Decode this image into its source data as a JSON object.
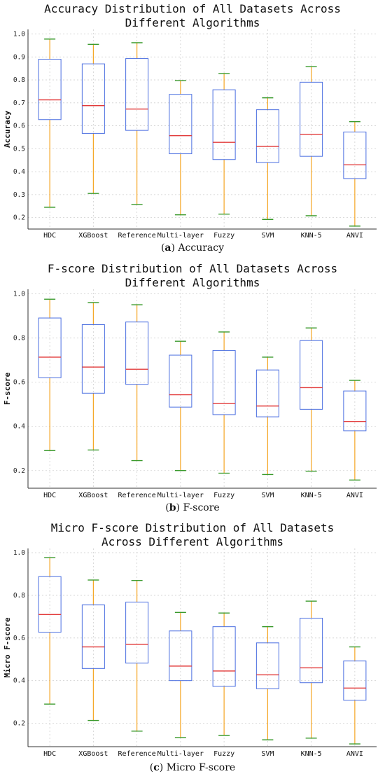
{
  "chart_data": [
    {
      "type": "box",
      "title_lines": [
        "Accuracy Distribution of All Datasets Across",
        "Different Algorithms"
      ],
      "xlabel": "",
      "ylabel": "Accuracy",
      "ylim": [
        0.15,
        1.02
      ],
      "yticks": [
        0.2,
        0.3,
        0.4,
        0.5,
        0.6,
        0.7,
        0.8,
        0.9,
        1.0
      ],
      "grid": true,
      "caption": {
        "label": "(a)",
        "text": " Accuracy"
      },
      "categories": [
        "HDC",
        "XGBoost",
        "Reference",
        "Multi-layer",
        "Fuzzy",
        "SVM",
        "KNN-5",
        "ANVI"
      ],
      "boxes": [
        {
          "min": 0.245,
          "q1": 0.627,
          "median": 0.713,
          "q3": 0.89,
          "max": 0.978
        },
        {
          "min": 0.305,
          "q1": 0.567,
          "median": 0.688,
          "q3": 0.87,
          "max": 0.955
        },
        {
          "min": 0.257,
          "q1": 0.58,
          "median": 0.673,
          "q3": 0.893,
          "max": 0.962
        },
        {
          "min": 0.212,
          "q1": 0.478,
          "median": 0.557,
          "q3": 0.737,
          "max": 0.797
        },
        {
          "min": 0.215,
          "q1": 0.453,
          "median": 0.528,
          "q3": 0.757,
          "max": 0.828
        },
        {
          "min": 0.192,
          "q1": 0.44,
          "median": 0.51,
          "q3": 0.67,
          "max": 0.722
        },
        {
          "min": 0.208,
          "q1": 0.467,
          "median": 0.563,
          "q3": 0.79,
          "max": 0.858
        },
        {
          "min": 0.163,
          "q1": 0.37,
          "median": 0.43,
          "q3": 0.573,
          "max": 0.618
        }
      ]
    },
    {
      "type": "box",
      "title_lines": [
        "F-score Distribution of All Datasets Across",
        "Different Algorithms"
      ],
      "xlabel": "",
      "ylabel": "F-score",
      "ylim": [
        0.12,
        1.02
      ],
      "yticks": [
        0.2,
        0.4,
        0.6,
        0.8,
        1.0
      ],
      "grid": true,
      "caption": {
        "label": "(b)",
        "text": " F-score"
      },
      "categories": [
        "HDC",
        "XGBoost",
        "Reference",
        "Multi-layer",
        "Fuzzy",
        "SVM",
        "KNN-5",
        "ANVI"
      ],
      "boxes": [
        {
          "min": 0.29,
          "q1": 0.62,
          "median": 0.713,
          "q3": 0.89,
          "max": 0.975
        },
        {
          "min": 0.293,
          "q1": 0.55,
          "median": 0.668,
          "q3": 0.86,
          "max": 0.96
        },
        {
          "min": 0.245,
          "q1": 0.59,
          "median": 0.658,
          "q3": 0.872,
          "max": 0.95
        },
        {
          "min": 0.2,
          "q1": 0.487,
          "median": 0.543,
          "q3": 0.722,
          "max": 0.785
        },
        {
          "min": 0.188,
          "q1": 0.453,
          "median": 0.503,
          "q3": 0.743,
          "max": 0.827
        },
        {
          "min": 0.182,
          "q1": 0.443,
          "median": 0.492,
          "q3": 0.655,
          "max": 0.713
        },
        {
          "min": 0.197,
          "q1": 0.477,
          "median": 0.575,
          "q3": 0.788,
          "max": 0.845
        },
        {
          "min": 0.157,
          "q1": 0.38,
          "median": 0.422,
          "q3": 0.56,
          "max": 0.608
        }
      ]
    },
    {
      "type": "box",
      "title_lines": [
        "Micro F-score Distribution of All Datasets",
        "Across Different Algorithms"
      ],
      "xlabel": "",
      "ylabel": "Micro F-score",
      "ylim": [
        0.09,
        1.02
      ],
      "yticks": [
        0.2,
        0.4,
        0.6,
        0.8,
        1.0
      ],
      "grid": true,
      "caption": {
        "label": "(c)",
        "text": " Micro F-score"
      },
      "categories": [
        "HDC",
        "XGBoost",
        "Reference",
        "Multi-layer",
        "Fuzzy",
        "SVM",
        "KNN-5",
        "ANVI"
      ],
      "boxes": [
        {
          "min": 0.29,
          "q1": 0.627,
          "median": 0.71,
          "q3": 0.888,
          "max": 0.977
        },
        {
          "min": 0.213,
          "q1": 0.457,
          "median": 0.558,
          "q3": 0.755,
          "max": 0.872
        },
        {
          "min": 0.163,
          "q1": 0.482,
          "median": 0.57,
          "q3": 0.768,
          "max": 0.87
        },
        {
          "min": 0.133,
          "q1": 0.4,
          "median": 0.468,
          "q3": 0.633,
          "max": 0.72
        },
        {
          "min": 0.143,
          "q1": 0.373,
          "median": 0.445,
          "q3": 0.653,
          "max": 0.717
        },
        {
          "min": 0.122,
          "q1": 0.362,
          "median": 0.427,
          "q3": 0.577,
          "max": 0.653
        },
        {
          "min": 0.13,
          "q1": 0.39,
          "median": 0.46,
          "q3": 0.693,
          "max": 0.773
        },
        {
          "min": 0.103,
          "q1": 0.308,
          "median": 0.365,
          "q3": 0.492,
          "max": 0.558
        }
      ]
    }
  ]
}
